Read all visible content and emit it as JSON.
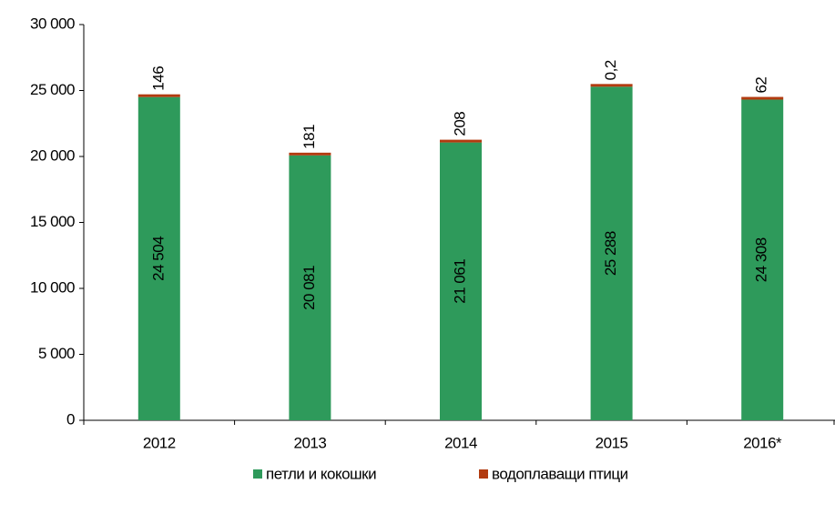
{
  "chart_data": {
    "type": "stacked-bar",
    "categories": [
      "2012",
      "2013",
      "2014",
      "2015",
      "2016*"
    ],
    "series": [
      {
        "name": "петли и кокошки",
        "color": "#2e9a5b",
        "values": [
          24504,
          20081,
          21061,
          25288,
          24308
        ],
        "value_labels": [
          "24 504",
          "20 081",
          "21 061",
          "25 288",
          "24 308"
        ]
      },
      {
        "name": "водоплаващи птици",
        "color": "#b23b10",
        "values": [
          146,
          181,
          208,
          0.2,
          62
        ],
        "value_labels": [
          "146",
          "181",
          "208",
          "0,2",
          "62"
        ]
      }
    ],
    "ylim": [
      0,
      30000
    ],
    "yticks": [
      0,
      {
        "value": 5000,
        "label": "5 000"
      },
      {
        "value": 10000,
        "label": "10 000"
      },
      {
        "value": 15000,
        "label": "15 000"
      },
      {
        "value": 20000,
        "label": "20 000"
      },
      {
        "value": 25000,
        "label": "25 000"
      },
      {
        "value": 30000,
        "label": "30 000"
      }
    ],
    "grid": false,
    "legend": "bottom"
  }
}
